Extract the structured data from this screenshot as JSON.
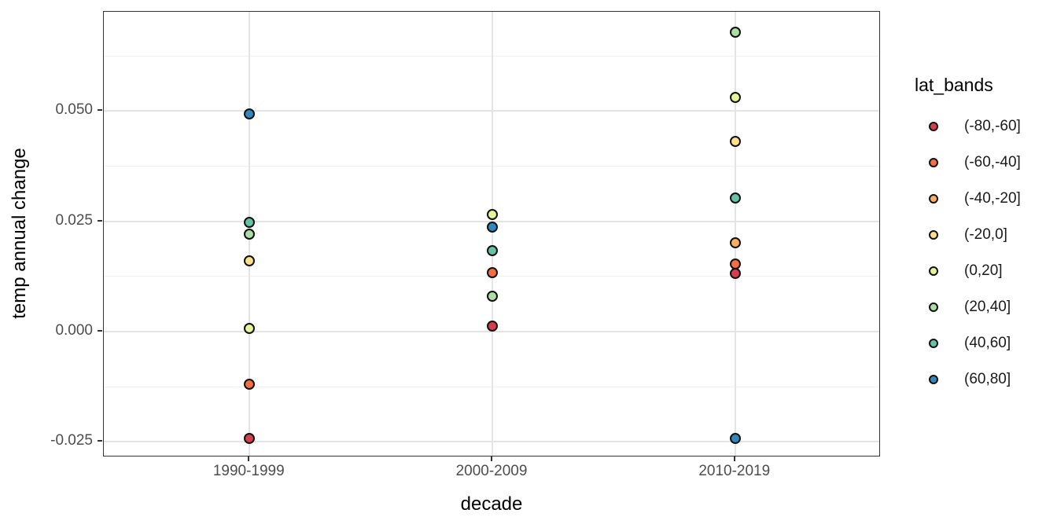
{
  "chart_data": {
    "type": "scatter",
    "title": "",
    "xlabel": "decade",
    "ylabel": "temp annual change",
    "legend_title": "lat_bands",
    "legend_position": "right",
    "grid": true,
    "categories": [
      "1990-1999",
      "2000-2009",
      "2010-2019"
    ],
    "x_positions": [
      0.1875,
      0.5,
      0.8125
    ],
    "y_axis": {
      "ylim": [
        -0.0285,
        0.0725
      ],
      "ticks": [
        -0.025,
        0.0,
        0.025,
        0.05
      ],
      "tick_labels": [
        "-0.025",
        "0.000",
        "0.025",
        "0.050"
      ],
      "minor_ticks": [
        -0.0125,
        0.0125,
        0.0375,
        0.0625
      ]
    },
    "bands": [
      {
        "label": "(-80,-60]",
        "color": "#d53e4f"
      },
      {
        "label": "(-60,-40]",
        "color": "#f46d43"
      },
      {
        "label": "(-40,-20]",
        "color": "#fdae61"
      },
      {
        "label": "(-20,0]",
        "color": "#fee08b"
      },
      {
        "label": "(0,20]",
        "color": "#e6f598"
      },
      {
        "label": "(20,40]",
        "color": "#abdda4"
      },
      {
        "label": "(40,60]",
        "color": "#66c2a5"
      },
      {
        "label": "(60,80]",
        "color": "#3288bd"
      }
    ],
    "points": [
      {
        "decade": "1990-1999",
        "band": "(-80,-60]",
        "value": -0.0243
      },
      {
        "decade": "1990-1999",
        "band": "(-60,-40]",
        "value": -0.012
      },
      {
        "decade": "1990-1999",
        "band": "(-20,0]",
        "value": 0.0161
      },
      {
        "decade": "1990-1999",
        "band": "(0,20]",
        "value": 0.0008
      },
      {
        "decade": "1990-1999",
        "band": "(20,40]",
        "value": 0.0221
      },
      {
        "decade": "1990-1999",
        "band": "(40,60]",
        "value": 0.0247
      },
      {
        "decade": "1990-1999",
        "band": "(60,80]",
        "value": 0.0494
      },
      {
        "decade": "2000-2009",
        "band": "(-80,-60]",
        "value": 0.0013
      },
      {
        "decade": "2000-2009",
        "band": "(-60,-40]",
        "value": 0.0134
      },
      {
        "decade": "2000-2009",
        "band": "(0,20]",
        "value": 0.0266
      },
      {
        "decade": "2000-2009",
        "band": "(20,40]",
        "value": 0.008
      },
      {
        "decade": "2000-2009",
        "band": "(40,60]",
        "value": 0.0183
      },
      {
        "decade": "2000-2009",
        "band": "(60,80]",
        "value": 0.0237
      },
      {
        "decade": "2010-2019",
        "band": "(-80,-60]",
        "value": 0.0131
      },
      {
        "decade": "2010-2019",
        "band": "(-60,-40]",
        "value": 0.0153
      },
      {
        "decade": "2010-2019",
        "band": "(-40,-20]",
        "value": 0.0202
      },
      {
        "decade": "2010-2019",
        "band": "(-20,0]",
        "value": 0.0431
      },
      {
        "decade": "2010-2019",
        "band": "(0,20]",
        "value": 0.053
      },
      {
        "decade": "2010-2019",
        "band": "(20,40]",
        "value": 0.0679
      },
      {
        "decade": "2010-2019",
        "band": "(40,60]",
        "value": 0.0302
      },
      {
        "decade": "2010-2019",
        "band": "(60,80]",
        "value": -0.0243
      }
    ]
  }
}
